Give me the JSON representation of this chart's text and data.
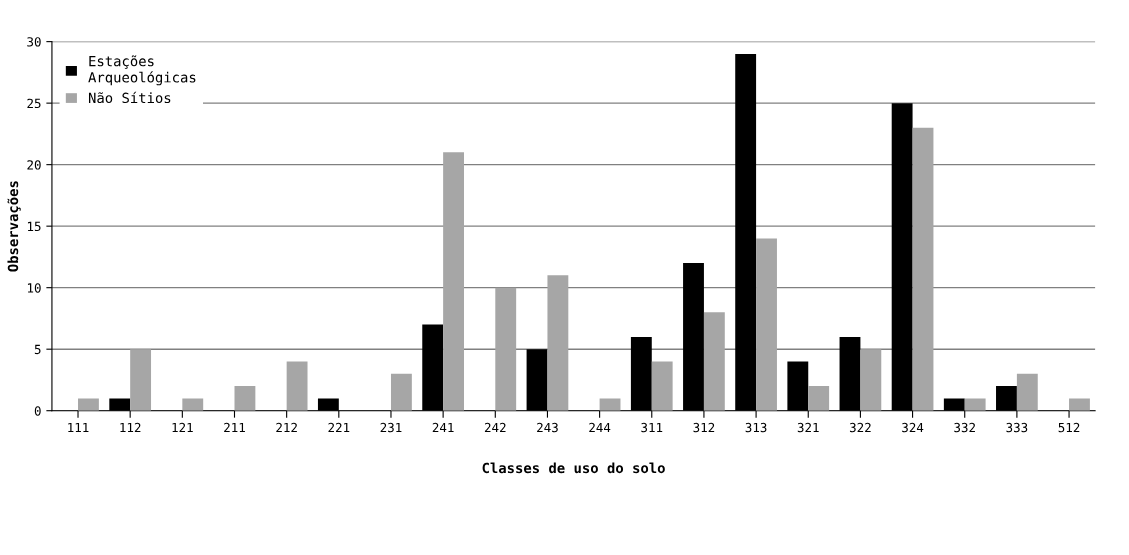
{
  "chart_data": {
    "type": "bar",
    "xlabel": "Classes de uso do solo",
    "ylabel": "Observações",
    "categories": [
      "111",
      "112",
      "121",
      "211",
      "212",
      "221",
      "231",
      "241",
      "242",
      "243",
      "244",
      "311",
      "312",
      "313",
      "321",
      "322",
      "324",
      "332",
      "333",
      "512"
    ],
    "series": [
      {
        "name": "Estações Arqueológicas",
        "color": "#000000",
        "values": [
          0,
          1,
          0,
          0,
          0,
          1,
          0,
          7,
          0,
          5,
          0,
          6,
          12,
          29,
          4,
          6,
          25,
          1,
          2,
          0
        ]
      },
      {
        "name": "Não Sítios",
        "color": "#a6a6a6",
        "values": [
          1,
          5,
          1,
          2,
          4,
          0,
          3,
          21,
          10,
          11,
          1,
          4,
          8,
          14,
          2,
          5,
          23,
          1,
          3,
          1
        ]
      }
    ],
    "ylim": [
      0,
      30
    ],
    "yticks": [
      0,
      5,
      10,
      15,
      20,
      25,
      30
    ],
    "grid": "y",
    "legend": "top left"
  }
}
